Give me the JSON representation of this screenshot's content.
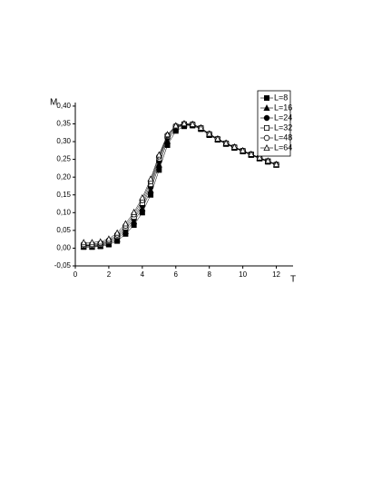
{
  "chart_data": {
    "type": "scatter",
    "xlabel": "T",
    "ylabel": "M",
    "x": [
      0.5,
      1,
      1.5,
      2,
      2.5,
      3,
      3.5,
      4,
      4.5,
      5,
      5.5,
      6,
      6.5,
      7,
      7.5,
      8,
      8.5,
      9,
      9.5,
      10,
      10.5,
      11,
      11.5,
      12
    ],
    "xlim": [
      0,
      13
    ],
    "xticks": [
      0,
      2,
      4,
      6,
      8,
      10,
      12
    ],
    "ylim": [
      -0.05,
      0.41
    ],
    "yticks": [
      {
        "value": -0.05,
        "label": "-0,05"
      },
      {
        "value": 0,
        "label": "0,00"
      },
      {
        "value": 0.05,
        "label": "0,05"
      },
      {
        "value": 0.1,
        "label": "0,10"
      },
      {
        "value": 0.15,
        "label": "0,15"
      },
      {
        "value": 0.2,
        "label": "0,20"
      },
      {
        "value": 0.25,
        "label": "0,25"
      },
      {
        "value": 0.3,
        "label": "0,30"
      },
      {
        "value": 0.35,
        "label": "0,35"
      },
      {
        "value": 0.4,
        "label": "0,40"
      }
    ],
    "legend": "upper right",
    "series": [
      {
        "name": "L=8",
        "color": "#000000",
        "marker": "square",
        "filled": true,
        "values": [
          0.003,
          0.003,
          0.005,
          0.01,
          0.02,
          0.04,
          0.065,
          0.1,
          0.15,
          0.22,
          0.29,
          0.33,
          0.343,
          0.345,
          0.335,
          0.318,
          0.305,
          0.293,
          0.282,
          0.272,
          0.262,
          0.252,
          0.243,
          0.234
        ]
      },
      {
        "name": "L=16",
        "color": "#000000",
        "marker": "triangle",
        "filled": true,
        "values": [
          0.005,
          0.005,
          0.007,
          0.013,
          0.025,
          0.047,
          0.075,
          0.112,
          0.163,
          0.235,
          0.302,
          0.337,
          0.347,
          0.347,
          0.337,
          0.32,
          0.306,
          0.294,
          0.283,
          0.273,
          0.263,
          0.253,
          0.244,
          0.235
        ]
      },
      {
        "name": "L=24",
        "color": "#000000",
        "marker": "circle",
        "filled": true,
        "values": [
          0.007,
          0.007,
          0.009,
          0.016,
          0.03,
          0.053,
          0.082,
          0.12,
          0.172,
          0.245,
          0.31,
          0.34,
          0.348,
          0.348,
          0.338,
          0.321,
          0.307,
          0.295,
          0.284,
          0.274,
          0.264,
          0.254,
          0.245,
          0.236
        ]
      },
      {
        "name": "L=32",
        "color": "#000000",
        "marker": "square",
        "filled": false,
        "values": [
          0.008,
          0.008,
          0.011,
          0.019,
          0.034,
          0.058,
          0.088,
          0.127,
          0.18,
          0.252,
          0.315,
          0.342,
          0.349,
          0.348,
          0.338,
          0.321,
          0.307,
          0.295,
          0.284,
          0.274,
          0.264,
          0.254,
          0.245,
          0.235
        ]
      },
      {
        "name": "L=48",
        "color": "#000000",
        "marker": "circle",
        "filled": false,
        "values": [
          0.011,
          0.011,
          0.014,
          0.022,
          0.038,
          0.063,
          0.095,
          0.135,
          0.188,
          0.258,
          0.318,
          0.344,
          0.35,
          0.349,
          0.339,
          0.322,
          0.308,
          0.296,
          0.285,
          0.274,
          0.264,
          0.254,
          0.245,
          0.235
        ]
      },
      {
        "name": "L=64",
        "color": "#000000",
        "marker": "triangle",
        "filled": false,
        "values": [
          0.016,
          0.016,
          0.018,
          0.026,
          0.043,
          0.069,
          0.101,
          0.142,
          0.195,
          0.263,
          0.32,
          0.345,
          0.351,
          0.349,
          0.339,
          0.322,
          0.308,
          0.296,
          0.285,
          0.275,
          0.265,
          0.255,
          0.246,
          0.236
        ]
      }
    ]
  }
}
